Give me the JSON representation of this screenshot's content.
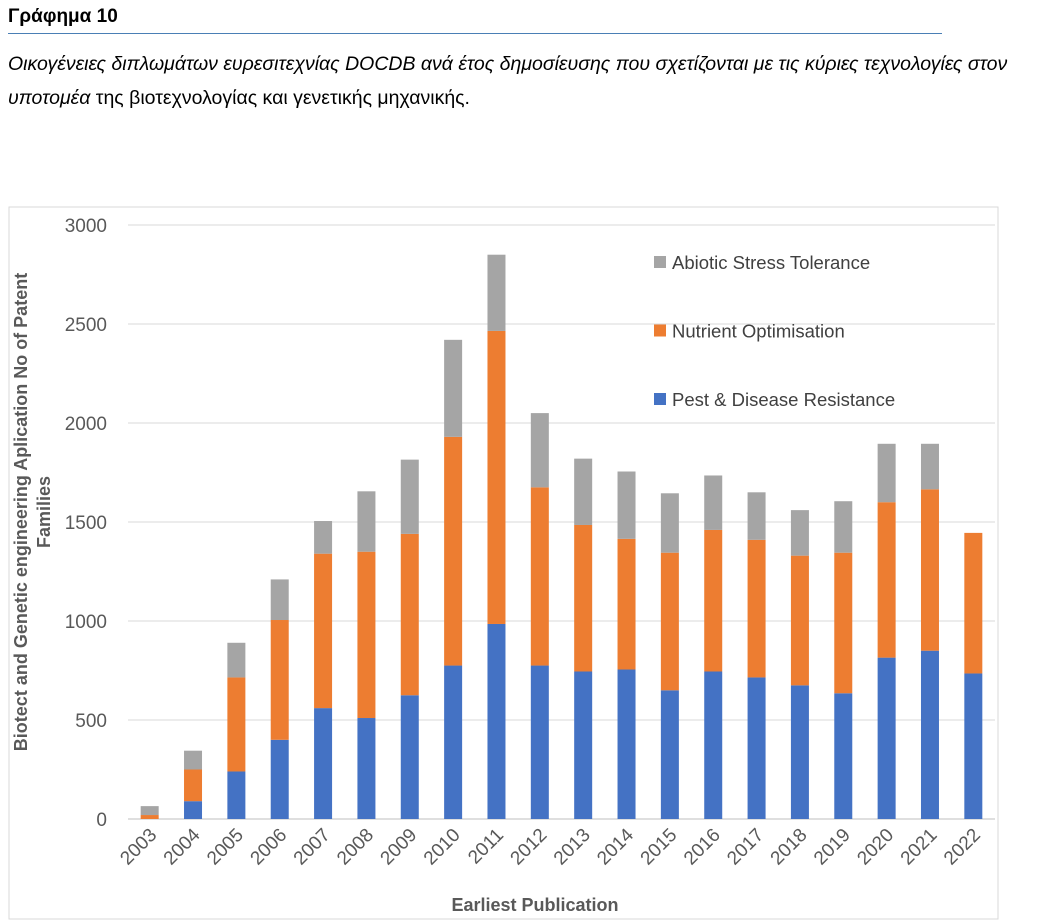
{
  "header": {
    "title": "Γράφημα 10",
    "caption_italic": "Οικογένειες διπλωμάτων ευρεσιτεχνίας DOCDB ανά έτος δημοσίευσης που σχετίζονται με τις κύριες τεχνολογίες στον υποτομέα",
    "caption_plain": " της βιοτεχνολογίας και γενετικής μηχανικής."
  },
  "chart_data": {
    "type": "bar",
    "stacked": true,
    "categories": [
      "2003",
      "2004",
      "2005",
      "2006",
      "2007",
      "2008",
      "2009",
      "2010",
      "2011",
      "2012",
      "2013",
      "2014",
      "2015",
      "2016",
      "2017",
      "2018",
      "2019",
      "2020",
      "2021",
      "2022"
    ],
    "series": [
      {
        "name": "Pest & Disease Resistance",
        "color": "#4472c4",
        "values": [
          0,
          90,
          240,
          400,
          560,
          510,
          625,
          775,
          985,
          775,
          745,
          755,
          650,
          745,
          715,
          675,
          635,
          815,
          850,
          735
        ]
      },
      {
        "name": "Nutrient Optimisation",
        "color": "#ed7d31",
        "values": [
          20,
          160,
          475,
          605,
          780,
          840,
          815,
          1155,
          1480,
          900,
          740,
          660,
          695,
          715,
          695,
          655,
          710,
          785,
          815,
          710
        ]
      },
      {
        "name": "Abiotic Stress Tolerance",
        "color": "#a5a5a5",
        "values": [
          45,
          95,
          175,
          205,
          165,
          305,
          375,
          490,
          385,
          375,
          335,
          340,
          300,
          275,
          240,
          230,
          260,
          295,
          230,
          0
        ]
      }
    ],
    "legend_order": [
      "Abiotic Stress Tolerance",
      "Nutrient Optimisation",
      "Pest & Disease Resistance"
    ],
    "legend_position": "top-right",
    "ylim": [
      0,
      3000
    ],
    "yticks": [
      0,
      500,
      1000,
      1500,
      2000,
      2500,
      3000
    ],
    "xlabel": "Earliest Publication",
    "ylabel_line1": "Biotect and Genetic engineering Aplication No of Patent",
    "ylabel_line2": "Families",
    "grid": true
  }
}
